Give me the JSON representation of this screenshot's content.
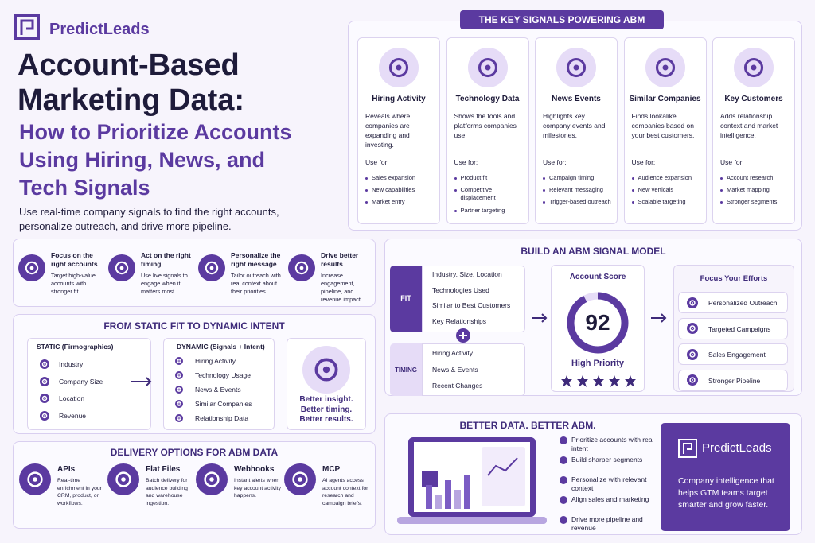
{
  "brand": "PredictLeads",
  "hero": {
    "title": [
      "Account-Based",
      "Marketing Data:"
    ],
    "subtitle": [
      "How to Prioritize Accounts",
      "Using Hiring, News, and",
      "Tech Signals"
    ],
    "description": "Use real-time company signals to find the right accounts, personalize outreach, and drive more pipeline."
  },
  "signals": {
    "title": "THE KEY SIGNALS POWERING ABM",
    "use_for_label": "Use for:",
    "cards": [
      {
        "name": "Hiring Activity",
        "description": "Reveals where companies are expanding and investing.",
        "uses": [
          "Sales expansion",
          "New capabilities",
          "Market entry"
        ]
      },
      {
        "name": "Technology Data",
        "description": "Shows the tools and platforms companies use.",
        "uses": [
          "Product fit",
          "Competitive displacement",
          "Partner targeting"
        ]
      },
      {
        "name": "News Events",
        "description": "Highlights key company events and milestones.",
        "uses": [
          "Campaign timing",
          "Relevant messaging",
          "Trigger-based outreach"
        ]
      },
      {
        "name": "Similar Companies",
        "description": "Finds lookalike companies based on your best customers.",
        "uses": [
          "Audience expansion",
          "New verticals",
          "Scalable targeting"
        ]
      },
      {
        "name": "Key Customers",
        "description": "Adds relationship context and market intelligence.",
        "uses": [
          "Account research",
          "Market mapping",
          "Stronger segments"
        ]
      }
    ]
  },
  "benefits": [
    {
      "title": "Focus on the right accounts",
      "text": "Target high-value accounts with stronger fit."
    },
    {
      "title": "Act on the right timing",
      "text": "Use live signals to engage when it matters most."
    },
    {
      "title": "Personalize the right message",
      "text": "Tailor outreach with real context about their priorities."
    },
    {
      "title": "Drive better results",
      "text": "Increase engagement, pipeline, and revenue impact."
    }
  ],
  "static_dynamic": {
    "title": "FROM STATIC FIT TO DYNAMIC INTENT",
    "static": {
      "heading": "STATIC (Firmographics)",
      "items": [
        "Industry",
        "Company Size",
        "Location",
        "Revenue"
      ]
    },
    "dynamic": {
      "heading": "DYNAMIC (Signals + Intent)",
      "items": [
        "Hiring Activity",
        "Technology Usage",
        "News & Events",
        "Similar Companies",
        "Relationship Data"
      ]
    },
    "result": [
      "Better insight.",
      "Better timing.",
      "Better results."
    ]
  },
  "delivery": {
    "title": "DELIVERY OPTIONS FOR ABM DATA",
    "options": [
      {
        "name": "APIs",
        "text": "Real-time enrichment in your CRM, product, or workflows."
      },
      {
        "name": "Flat Files",
        "text": "Batch delivery for audience building and warehouse ingestion."
      },
      {
        "name": "Webhooks",
        "text": "Instant alerts when key account activity happens."
      },
      {
        "name": "MCP",
        "text": "AI agents access account context for research and campaign briefs."
      }
    ]
  },
  "model": {
    "title": "BUILD AN ABM SIGNAL MODEL",
    "fit": {
      "label": "FIT",
      "items": [
        "Industry, Size, Location",
        "Technologies Used",
        "Similar to Best Customers",
        "Key Relationships"
      ]
    },
    "timing": {
      "label": "TIMING",
      "items": [
        "Hiring Activity",
        "News & Events",
        "Recent Changes"
      ]
    },
    "score": {
      "label": "Account Score",
      "value": "92",
      "level": "High Priority"
    },
    "focus": {
      "title": "Focus Your Efforts",
      "items": [
        "Personalized Outreach",
        "Targeted Campaigns",
        "Sales Engagement",
        "Stronger Pipeline"
      ]
    }
  },
  "better": {
    "title": "BETTER DATA. BETTER ABM.",
    "points": [
      "Prioritize accounts with real intent",
      "Build sharper segments",
      "Personalize with relevant context",
      "Align sales and marketing",
      "Drive more pipeline and revenue"
    ],
    "promo": {
      "brand": "PredictLeads",
      "text": "Company intelligence that helps GTM teams target smarter and grow faster."
    }
  }
}
